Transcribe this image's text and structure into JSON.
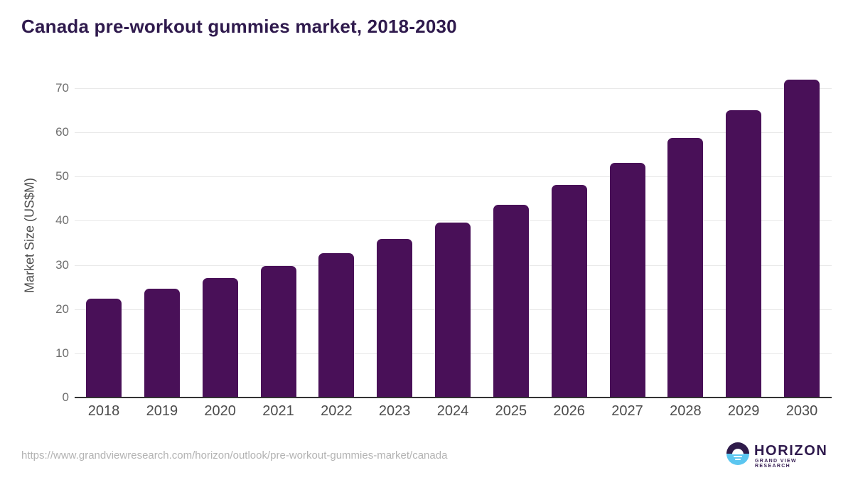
{
  "page": {
    "title": "Canada pre-workout gummies market, 2018-2030",
    "source_url": "https://www.grandviewresearch.com/horizon/outlook/pre-workout-gummies-market/canada"
  },
  "logo": {
    "name": "HORIZON",
    "subtitle": "GRAND VIEW RESEARCH"
  },
  "colors": {
    "bar": "#491058",
    "title_text": "#2f1a4d",
    "gridline": "#e9e9e9",
    "axis_line": "#333333",
    "y_tick_text": "#6f6f6f",
    "x_tick_text": "#4c4c4c",
    "url_text": "#b3b3b3",
    "logo_dark": "#2f1b4a",
    "logo_blue": "#5bc6f0"
  },
  "chart_data": {
    "type": "bar",
    "title": "Canada pre-workout gummies market, 2018-2030",
    "categories": [
      "2018",
      "2019",
      "2020",
      "2021",
      "2022",
      "2023",
      "2024",
      "2025",
      "2026",
      "2027",
      "2028",
      "2029",
      "2030"
    ],
    "values": [
      22.3,
      24.6,
      27.0,
      29.8,
      32.7,
      35.9,
      39.6,
      43.6,
      48.1,
      53.1,
      58.8,
      65.0,
      72.0
    ],
    "xlabel": "",
    "ylabel": "Market Size (US$M)",
    "ylim": [
      0,
      73.4
    ],
    "yticks": [
      0,
      10,
      20,
      30,
      40,
      50,
      60,
      70
    ],
    "grid": "horizontal-light",
    "legend": "none",
    "bar_color": "#491058"
  }
}
